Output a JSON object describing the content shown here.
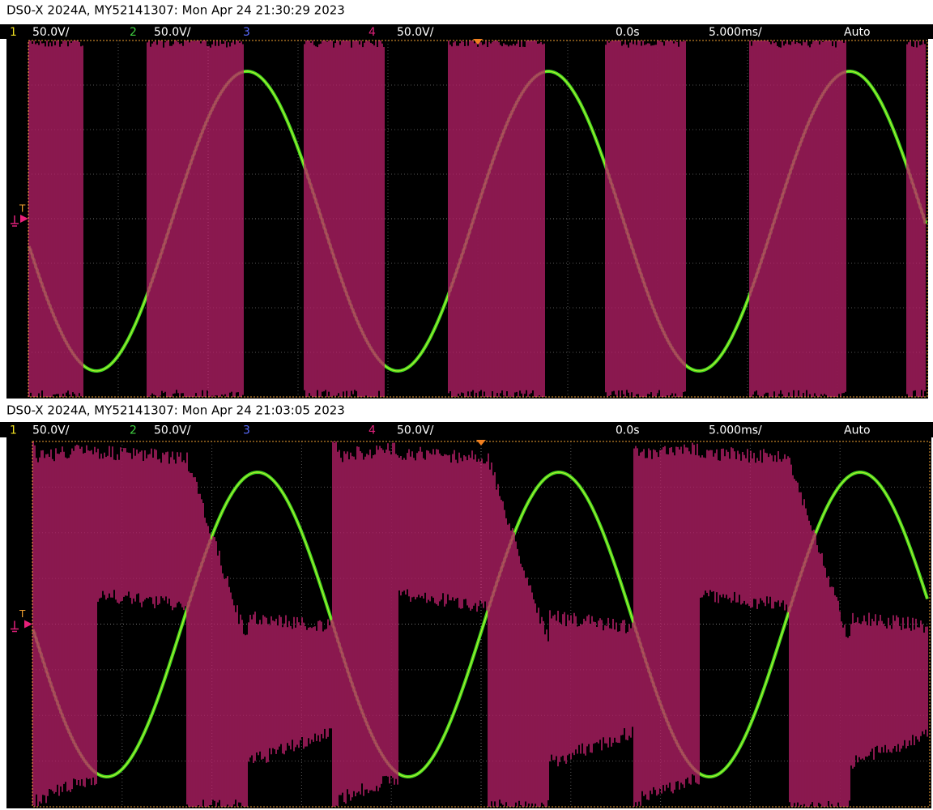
{
  "screens": [
    {
      "header": "DS0-X 2024A, MY52141307: Mon Apr 24 21:30:29 2023",
      "channels": [
        {
          "number": "1",
          "scale": "50.0V/"
        },
        {
          "number": "2",
          "scale": "50.0V/"
        },
        {
          "number": "3"
        },
        {
          "number": "4",
          "scale": "50.0V/"
        }
      ],
      "time_offset": "0.0s",
      "time_scale": "5.000ms/",
      "trigger_mode": "Auto",
      "trigger_label": "T"
    },
    {
      "header": "DS0-X 2024A, MY52141307: Mon Apr 24 21:03:05 2023",
      "channels": [
        {
          "number": "1",
          "scale": "50.0V/"
        },
        {
          "number": "2",
          "scale": "50.0V/"
        },
        {
          "number": "3"
        },
        {
          "number": "4",
          "scale": "50.0V/"
        }
      ],
      "time_offset": "0.0s",
      "time_scale": "5.000ms/",
      "trigger_mode": "Auto",
      "trigger_label": "T"
    }
  ]
}
